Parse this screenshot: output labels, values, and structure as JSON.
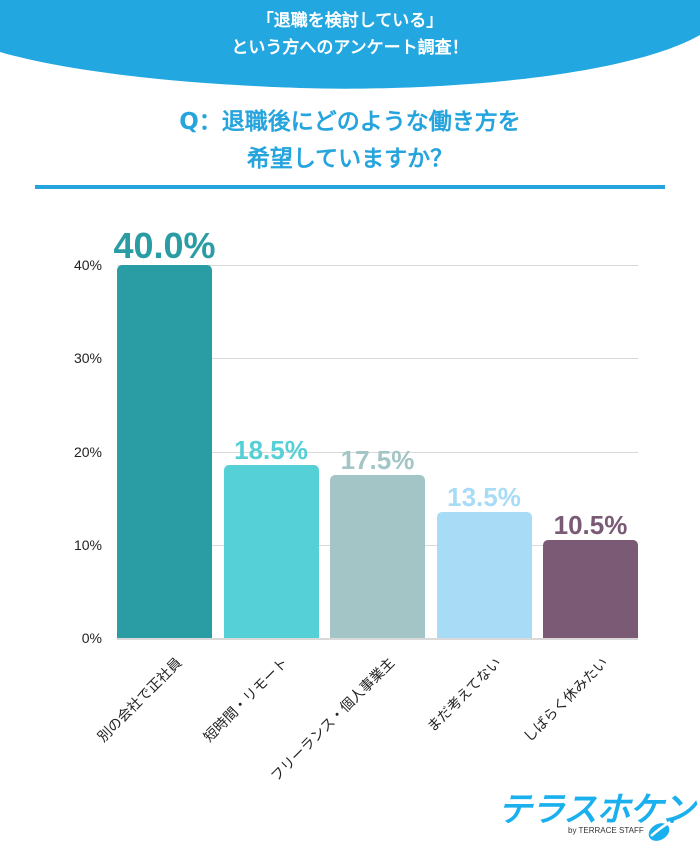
{
  "header": {
    "line1": "「退職を検討している」",
    "line2": "という方へのアンケート調査！",
    "bg_color": "#22a7e0"
  },
  "question": {
    "line1": "Q：退職後にどのような働き方を",
    "line2": "希望していますか？",
    "color": "#25a4dd"
  },
  "y_axis": {
    "ticks": [
      "40%",
      "30%",
      "20%",
      "10%",
      "0%"
    ]
  },
  "bars": [
    {
      "category": "別の会社で正社員",
      "value": 40.0,
      "label": "40.0%",
      "color": "#2a9ca3",
      "label_size": 36
    },
    {
      "category": "短時間・リモート",
      "value": 18.5,
      "label": "18.5%",
      "color": "#55d0d6",
      "label_size": 26
    },
    {
      "category": "フリーランス・個人事業主",
      "value": 17.5,
      "label": "17.5%",
      "color": "#a3c5c6",
      "label_size": 26
    },
    {
      "category": "まだ考えてない",
      "value": 13.5,
      "label": "13.5%",
      "color": "#a8dcf6",
      "label_size": 26
    },
    {
      "category": "しばらく休みたい",
      "value": 10.5,
      "label": "10.5%",
      "color": "#7a5a74",
      "label_size": 26
    }
  ],
  "logo": {
    "main": "テラスホケン",
    "sub": "by TERRACE STAFF"
  },
  "chart_data": {
    "type": "bar",
    "title": "Q：退職後にどのような働き方を希望していますか？",
    "subtitle": "「退職を検討している」という方へのアンケート調査！",
    "categories": [
      "別の会社で正社員",
      "短時間・リモート",
      "フリーランス・個人事業主",
      "まだ考えてない",
      "しばらく休みたい"
    ],
    "values": [
      40.0,
      18.5,
      17.5,
      13.5,
      10.5
    ],
    "data_labels": [
      "40.0%",
      "18.5%",
      "17.5%",
      "13.5%",
      "10.5%"
    ],
    "xlabel": "",
    "ylabel": "",
    "ylim": [
      0,
      40
    ],
    "yticks": [
      "0%",
      "10%",
      "20%",
      "30%",
      "40%"
    ],
    "grid": true,
    "legend": null
  }
}
